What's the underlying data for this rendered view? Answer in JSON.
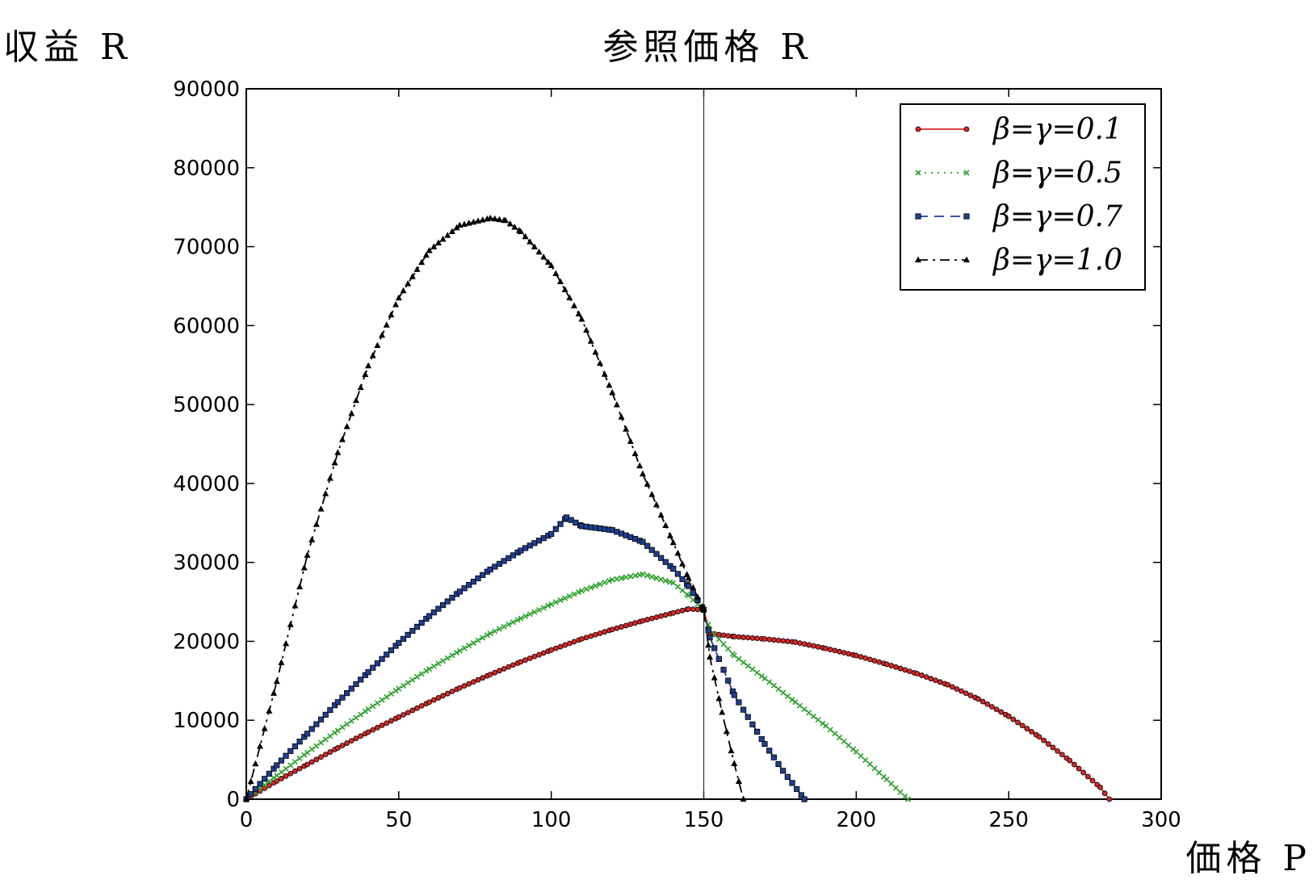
{
  "chart_data": {
    "type": "line",
    "title": "参照価格 R",
    "xlabel": "価格 P",
    "ylabel": "収益 R",
    "xlim": [
      0,
      300
    ],
    "ylim": [
      0,
      90000
    ],
    "xticks": [
      "0",
      "50",
      "100",
      "150",
      "200",
      "250",
      "300"
    ],
    "yticks": [
      "0",
      "10000",
      "20000",
      "30000",
      "40000",
      "50000",
      "60000",
      "70000",
      "80000",
      "90000"
    ],
    "reference_line_x": 150,
    "grid": false,
    "legend_position": "top-right",
    "series": [
      {
        "name": "β=γ=0.1",
        "color": "#d62728",
        "marker": "circle",
        "linestyle": "solid",
        "x": [
          0,
          10,
          20,
          30,
          40,
          50,
          60,
          70,
          80,
          90,
          100,
          110,
          120,
          130,
          140,
          145,
          150,
          152,
          160,
          170,
          180,
          190,
          200,
          210,
          220,
          230,
          240,
          250,
          260,
          270,
          280,
          283
        ],
        "y": [
          0,
          2300,
          4400,
          6500,
          8500,
          10400,
          12300,
          14100,
          15800,
          17400,
          18900,
          20300,
          21500,
          22600,
          23600,
          24100,
          24000,
          21000,
          20600,
          20300,
          19900,
          19100,
          18200,
          17100,
          15900,
          14500,
          12700,
          10500,
          7900,
          4900,
          1500,
          0
        ]
      },
      {
        "name": "β=γ=0.5",
        "color": "#2ca02c",
        "marker": "x",
        "linestyle": "dotted",
        "x": [
          0,
          10,
          20,
          30,
          40,
          50,
          60,
          70,
          80,
          90,
          100,
          110,
          120,
          130,
          140,
          145,
          150,
          152,
          160,
          170,
          180,
          190,
          200,
          210,
          217
        ],
        "y": [
          0,
          3000,
          5900,
          8700,
          11400,
          14000,
          16500,
          18800,
          21000,
          22900,
          24700,
          26400,
          27800,
          28500,
          27400,
          25800,
          24000,
          21500,
          18200,
          15300,
          12300,
          9300,
          6000,
          2500,
          0
        ]
      },
      {
        "name": "β=γ=0.7",
        "color": "#1f3f8f",
        "marker": "square",
        "linestyle": "dashed",
        "x": [
          0,
          10,
          20,
          30,
          40,
          50,
          60,
          70,
          80,
          90,
          100,
          105,
          110,
          120,
          130,
          140,
          145,
          150,
          152,
          160,
          170,
          176,
          183
        ],
        "y": [
          0,
          4300,
          8300,
          12300,
          16100,
          19800,
          23200,
          26300,
          29100,
          31500,
          33600,
          35700,
          34600,
          34100,
          32600,
          29200,
          27000,
          24000,
          20500,
          13200,
          7000,
          3600,
          0
        ]
      },
      {
        "name": "β=γ=1.0",
        "color": "#000000",
        "marker": "triangle",
        "linestyle": "dashdot",
        "x": [
          0,
          10,
          20,
          30,
          40,
          50,
          60,
          70,
          80,
          85,
          90,
          100,
          110,
          120,
          130,
          140,
          145,
          150,
          152,
          156,
          160,
          163
        ],
        "y": [
          0,
          14900,
          30900,
          43900,
          54900,
          63500,
          69500,
          72700,
          73600,
          73300,
          71900,
          67600,
          60800,
          51500,
          41200,
          32500,
          28000,
          24000,
          18000,
          11000,
          4500,
          0
        ]
      }
    ]
  }
}
